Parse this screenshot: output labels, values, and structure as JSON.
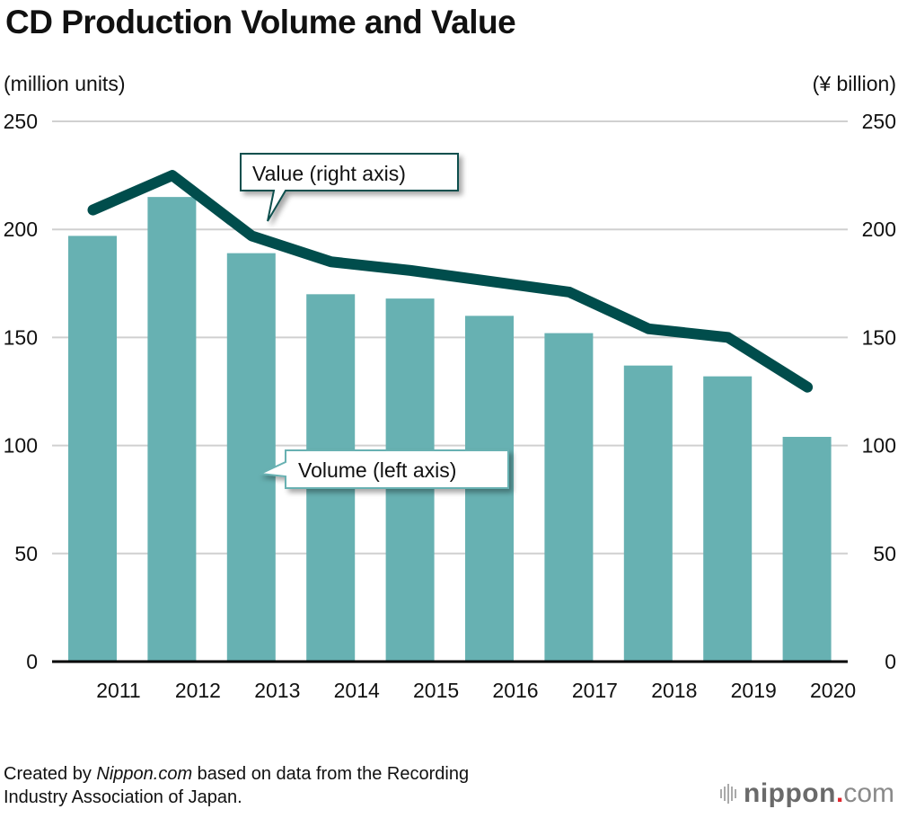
{
  "title": "CD Production Volume and Value",
  "left_axis_unit": "(million units)",
  "right_axis_unit": "(¥ billion)",
  "source": {
    "prefix": "Created by ",
    "site": "Nippon.com",
    "suffix": " based on data from the Recording",
    "line2": "Industry Association of Japan."
  },
  "logo": {
    "name": "nippon",
    "dot": ".",
    "tld": "com"
  },
  "colors": {
    "bar": "#67b1b2",
    "line": "#004d4c",
    "grid": "#d0d0d0",
    "axis": "#000000",
    "logo_dot": "#e0262e"
  },
  "chart_data": {
    "type": "bar",
    "title": "CD Production Volume and Value",
    "categories": [
      "2011",
      "2012",
      "2013",
      "2014",
      "2015",
      "2016",
      "2017",
      "2018",
      "2019",
      "2020"
    ],
    "series": [
      {
        "name": "Volume (left axis)",
        "type": "bar",
        "axis": "left",
        "unit": "million units",
        "values": [
          197,
          215,
          189,
          170,
          168,
          160,
          152,
          137,
          132,
          104
        ]
      },
      {
        "name": "Value (right axis)",
        "type": "line",
        "axis": "right",
        "unit": "¥ billion",
        "values": [
          209,
          225,
          197,
          185,
          181,
          176,
          171,
          154,
          150,
          127
        ]
      }
    ],
    "ylabel_left": "(million units)",
    "ylabel_right": "(¥ billion)",
    "ylim_left": [
      0,
      250
    ],
    "ylim_right": [
      0,
      250
    ],
    "yticks_left": [
      "0",
      "50",
      "100",
      "150",
      "200",
      "250"
    ],
    "yticks_right": [
      "0",
      "50",
      "100",
      "150",
      "200",
      "250"
    ],
    "grid": true,
    "annotations": [
      {
        "text": "Value (right axis)",
        "target": "Value (right axis)"
      },
      {
        "text": "Volume (left axis)",
        "target": "Volume (left axis)"
      }
    ]
  }
}
